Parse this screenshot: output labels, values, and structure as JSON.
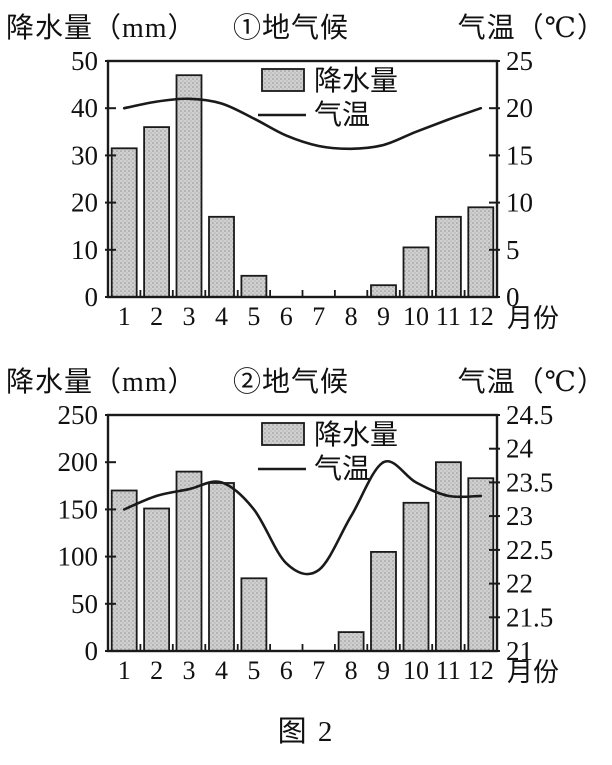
{
  "caption": "图 2",
  "colors": {
    "background": "#ffffff",
    "bar_fill": "#d0d0d0",
    "bar_dot": "#939393",
    "bar_dot2": "#b4b4b4",
    "stroke": "#1a1a1a",
    "text": "#111111"
  },
  "chart_data": [
    {
      "type": "bar+line",
      "title": "①地气候",
      "left_axis_title": "降水量（mm）",
      "right_axis_title": "气温（℃）",
      "x_axis_title": "月份",
      "categories": [
        "1",
        "2",
        "3",
        "4",
        "5",
        "6",
        "7",
        "8",
        "9",
        "10",
        "11",
        "12"
      ],
      "series": [
        {
          "name": "降水量",
          "type": "bar",
          "axis": "left",
          "values": [
            31.5,
            36,
            47,
            17,
            4.5,
            0,
            0,
            0,
            2.5,
            10.5,
            17,
            19
          ]
        },
        {
          "name": "气温",
          "type": "line",
          "axis": "right",
          "values": [
            20,
            20.7,
            21,
            20.5,
            18.9,
            17.1,
            16,
            15.7,
            16.1,
            17.5,
            18.8,
            20
          ]
        }
      ],
      "left_axis": {
        "min": 0,
        "max": 50,
        "step": 10
      },
      "right_axis": {
        "min": 0,
        "max": 25,
        "step": 5
      },
      "legend": {
        "position": "inside-top-center",
        "entries": [
          "降水量",
          "气温"
        ]
      },
      "grid": false
    },
    {
      "type": "bar+line",
      "title": "②地气候",
      "left_axis_title": "降水量（mm）",
      "right_axis_title": "气温（℃）",
      "x_axis_title": "月份",
      "categories": [
        "1",
        "2",
        "3",
        "4",
        "5",
        "6",
        "7",
        "8",
        "9",
        "10",
        "11",
        "12"
      ],
      "series": [
        {
          "name": "降水量",
          "type": "bar",
          "axis": "left",
          "values": [
            170,
            151,
            190,
            178,
            77,
            0,
            0,
            20,
            105,
            157,
            200,
            183
          ]
        },
        {
          "name": "气温",
          "type": "line",
          "axis": "right",
          "values": [
            23.1,
            23.3,
            23.4,
            23.5,
            23.1,
            22.3,
            22.2,
            23.0,
            23.8,
            23.5,
            23.3,
            23.3
          ]
        }
      ],
      "left_axis": {
        "min": 0,
        "max": 250,
        "step": 50
      },
      "right_axis": {
        "min": 21,
        "max": 24.5,
        "step": 0.5
      },
      "legend": {
        "position": "inside-top-center",
        "entries": [
          "降水量",
          "气温"
        ]
      },
      "grid": false
    }
  ]
}
